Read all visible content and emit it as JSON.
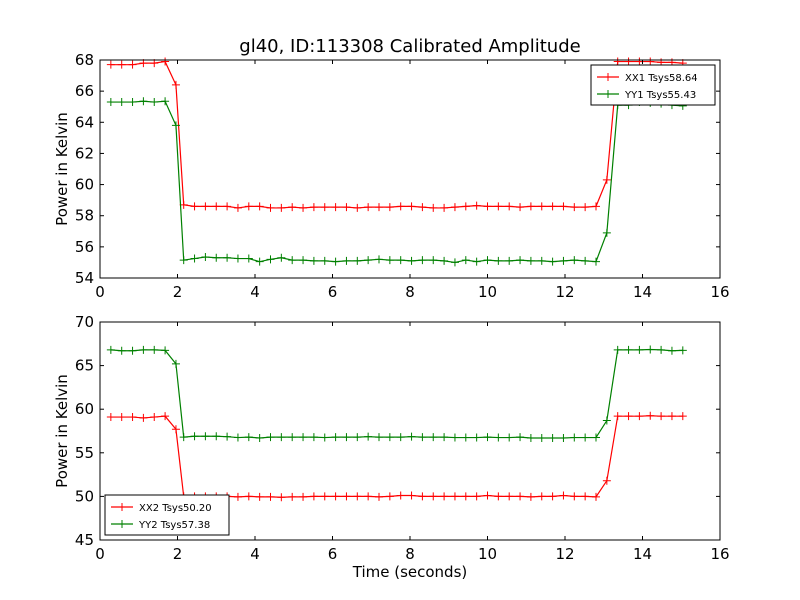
{
  "chart_data": [
    {
      "type": "line",
      "title": "gl40, ID:113308 Calibrated Amplitude",
      "xlabel": "",
      "ylabel": "Power in Kelvin",
      "xlim": [
        0,
        16
      ],
      "ylim": [
        54,
        68
      ],
      "xticks": [
        0,
        2,
        4,
        6,
        8,
        10,
        12,
        14,
        16
      ],
      "yticks": [
        54,
        56,
        58,
        60,
        62,
        64,
        66,
        68
      ],
      "grid": false,
      "legend_position": "top-right",
      "x": [
        0.28,
        0.56,
        0.84,
        1.12,
        1.4,
        1.68,
        1.96,
        2.16,
        2.44,
        2.72,
        3.0,
        3.28,
        3.56,
        3.84,
        4.12,
        4.4,
        4.68,
        4.96,
        5.24,
        5.52,
        5.8,
        6.08,
        6.36,
        6.64,
        6.92,
        7.2,
        7.48,
        7.76,
        8.04,
        8.32,
        8.6,
        8.88,
        9.16,
        9.44,
        9.72,
        10.0,
        10.28,
        10.56,
        10.84,
        11.12,
        11.4,
        11.68,
        11.96,
        12.24,
        12.52,
        12.8,
        13.08,
        13.36,
        13.64,
        13.92,
        14.2,
        14.48,
        14.76,
        15.04
      ],
      "series": [
        {
          "name": "XX1 Tsys58.64",
          "color": "#ff0000",
          "values": [
            67.7,
            67.7,
            67.7,
            67.8,
            67.8,
            67.9,
            66.4,
            58.7,
            58.6,
            58.6,
            58.6,
            58.6,
            58.5,
            58.6,
            58.6,
            58.5,
            58.5,
            58.55,
            58.5,
            58.55,
            58.55,
            58.55,
            58.55,
            58.5,
            58.55,
            58.55,
            58.55,
            58.6,
            58.6,
            58.55,
            58.5,
            58.5,
            58.55,
            58.6,
            58.65,
            58.6,
            58.6,
            58.6,
            58.55,
            58.6,
            58.6,
            58.6,
            58.6,
            58.55,
            58.55,
            58.6,
            60.3,
            67.9,
            67.9,
            67.9,
            67.9,
            67.85,
            67.85,
            67.8
          ]
        },
        {
          "name": "YY1 Tsys55.43",
          "color": "#008000",
          "values": [
            65.3,
            65.3,
            65.3,
            65.35,
            65.3,
            65.35,
            63.8,
            55.15,
            55.25,
            55.35,
            55.3,
            55.3,
            55.25,
            55.25,
            55.05,
            55.2,
            55.3,
            55.15,
            55.15,
            55.1,
            55.1,
            55.05,
            55.1,
            55.1,
            55.15,
            55.2,
            55.15,
            55.15,
            55.1,
            55.15,
            55.15,
            55.1,
            55.0,
            55.15,
            55.05,
            55.15,
            55.1,
            55.1,
            55.15,
            55.1,
            55.1,
            55.05,
            55.1,
            55.15,
            55.1,
            55.05,
            56.9,
            65.1,
            65.1,
            65.3,
            65.25,
            65.2,
            65.1,
            65.05
          ]
        }
      ]
    },
    {
      "type": "line",
      "title": "",
      "xlabel": "Time (seconds)",
      "ylabel": "Power in Kelvin",
      "xlim": [
        0,
        16
      ],
      "ylim": [
        45,
        70
      ],
      "xticks": [
        0,
        2,
        4,
        6,
        8,
        10,
        12,
        14,
        16
      ],
      "yticks": [
        45,
        50,
        55,
        60,
        65,
        70
      ],
      "grid": false,
      "legend_position": "bottom-left",
      "x": [
        0.28,
        0.56,
        0.84,
        1.12,
        1.4,
        1.68,
        1.96,
        2.16,
        2.44,
        2.72,
        3.0,
        3.28,
        3.56,
        3.84,
        4.12,
        4.4,
        4.68,
        4.96,
        5.24,
        5.52,
        5.8,
        6.08,
        6.36,
        6.64,
        6.92,
        7.2,
        7.48,
        7.76,
        8.04,
        8.32,
        8.6,
        8.88,
        9.16,
        9.44,
        9.72,
        10.0,
        10.28,
        10.56,
        10.84,
        11.12,
        11.4,
        11.68,
        11.96,
        12.24,
        12.52,
        12.8,
        13.08,
        13.36,
        13.64,
        13.92,
        14.2,
        14.48,
        14.76,
        15.04
      ],
      "series": [
        {
          "name": "XX2 Tsys50.20",
          "color": "#ff0000",
          "values": [
            59.1,
            59.1,
            59.1,
            59.0,
            59.1,
            59.2,
            57.7,
            50.0,
            50.0,
            50.0,
            50.0,
            50.0,
            49.95,
            50.0,
            49.95,
            49.95,
            49.9,
            49.95,
            49.95,
            50.0,
            50.0,
            50.0,
            50.0,
            50.0,
            50.0,
            49.95,
            50.0,
            50.1,
            50.1,
            50.0,
            50.0,
            50.0,
            50.0,
            50.0,
            50.0,
            50.1,
            50.0,
            50.0,
            50.0,
            49.95,
            50.0,
            50.0,
            50.1,
            50.0,
            50.0,
            49.95,
            51.8,
            59.2,
            59.2,
            59.2,
            59.25,
            59.2,
            59.2,
            59.2
          ]
        },
        {
          "name": "YY2 Tsys57.38",
          "color": "#008000",
          "values": [
            66.8,
            66.7,
            66.7,
            66.8,
            66.8,
            66.75,
            65.2,
            56.8,
            56.9,
            56.9,
            56.9,
            56.85,
            56.75,
            56.8,
            56.7,
            56.8,
            56.8,
            56.8,
            56.8,
            56.8,
            56.75,
            56.8,
            56.8,
            56.8,
            56.85,
            56.8,
            56.8,
            56.8,
            56.85,
            56.8,
            56.8,
            56.8,
            56.75,
            56.75,
            56.75,
            56.8,
            56.75,
            56.75,
            56.8,
            56.7,
            56.7,
            56.7,
            56.7,
            56.75,
            56.75,
            56.75,
            58.7,
            66.8,
            66.8,
            66.8,
            66.85,
            66.8,
            66.7,
            66.75
          ]
        }
      ]
    }
  ]
}
